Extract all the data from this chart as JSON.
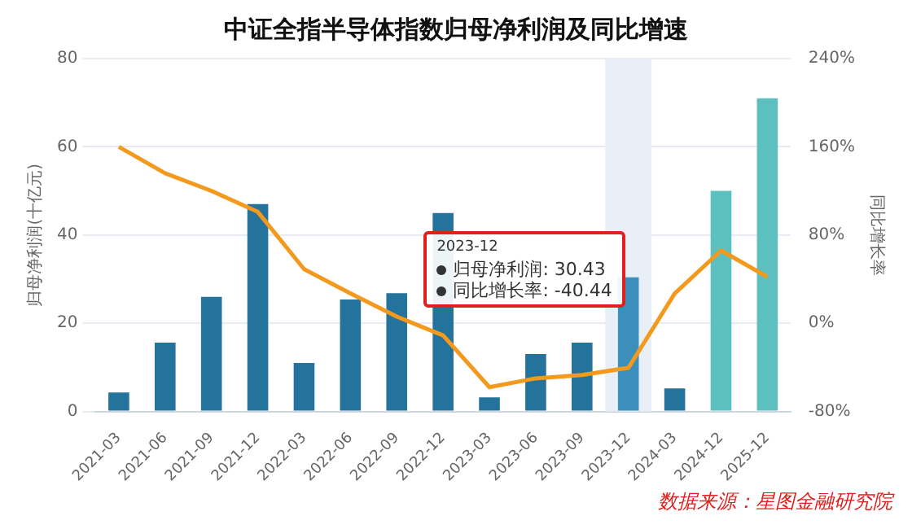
{
  "chart_data": {
    "type": "bar",
    "title": "中证全指半导体指数归母净利润及同比增速",
    "ylabel": "归母净利润(十亿元)",
    "y2label": "同比增长率",
    "categories": [
      "2021-03",
      "2021-06",
      "2021-09",
      "2021-12",
      "2022-03",
      "2022-06",
      "2022-09",
      "2022-12",
      "2023-03",
      "2023-06",
      "2023-09",
      "2023-12",
      "2024-03",
      "2024-12",
      "2025-12"
    ],
    "series": [
      {
        "colors": [
          "#23739c",
          "#23739c",
          "#23739c",
          "#23739c",
          "#23739c",
          "#23739c",
          "#23739c",
          "#23739c",
          "#23739c",
          "#23739c",
          "#23739c",
          "#3a8fbd",
          "#23739c",
          "#5cbfc0",
          "#5cbfc0"
        ],
        "values": [
          4.3,
          15.6,
          26,
          47,
          11,
          25.4,
          26.8,
          45,
          3.2,
          13,
          15.6,
          30.43,
          5.2,
          50,
          71
        ]
      },
      {
        "type": "line",
        "axis": "y2",
        "color": "#f39a1e",
        "values": [
          160,
          136,
          120,
          101,
          49,
          27,
          6,
          -11,
          -58,
          -50,
          -47,
          -40.44,
          27,
          66,
          42
        ]
      }
    ],
    "ylim": [
      0,
      80
    ],
    "yticks": [
      0,
      20,
      40,
      60,
      80
    ],
    "y2lim": [
      -80,
      240
    ],
    "y2ticks": [
      {
        "value": -80,
        "label": "-80%"
      },
      {
        "value": 0,
        "label": "0%"
      },
      {
        "value": 80,
        "label": "80%"
      },
      {
        "value": 160,
        "label": "160%"
      },
      {
        "value": 240,
        "label": "240%"
      }
    ],
    "grid": "y",
    "legend": false,
    "marker": "none",
    "line_style": "solid",
    "bands": [
      {
        "axis": "x",
        "from": "2023-12",
        "to": "2023-12",
        "color": "#e9eff7"
      }
    ],
    "annotations": [
      "2023-12",
      "归母净利润: 30.43",
      "同比增长率: -40.44",
      "数据来源：星图金融研究院"
    ]
  }
}
